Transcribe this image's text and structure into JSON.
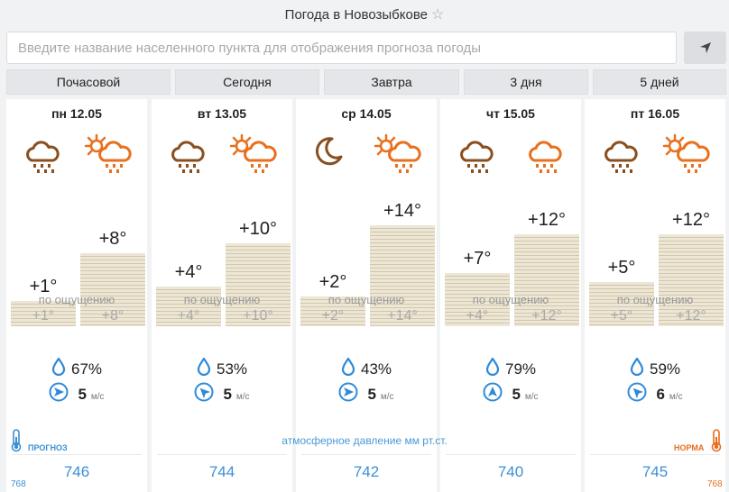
{
  "header": {
    "title": "Погода в Новозыбкове",
    "star_icon": "star-outline-icon"
  },
  "search": {
    "placeholder": "Введите название населенного пункта для отображения прогноза погоды",
    "value": "",
    "locate_icon": "location-arrow-icon"
  },
  "tabs": [
    {
      "label": "Почасовой"
    },
    {
      "label": "Сегодня"
    },
    {
      "label": "Завтра"
    },
    {
      "label": "3 дня"
    },
    {
      "label": "5 дней"
    }
  ],
  "feels_label": "по ощущению",
  "wind_unit": "м/с",
  "pressure_caption": "атмосферное давление  мм рт.ст.",
  "forecast_label": "ПРОГНОЗ",
  "norm_label": "НОРМА",
  "pressure_scale_left": "768",
  "pressure_scale_right": "768",
  "colors": {
    "accent_blue": "#3d8fd6",
    "norm_orange": "#e86c1c",
    "bar_fill": "#ece6d6",
    "bar_line": "#d4c7a8"
  },
  "days": [
    {
      "date": "пн 12.05",
      "night_icon": "cloud-rain-icon",
      "day_icon": "sun-cloud-rain-icon",
      "night_temp": "+1°",
      "day_temp": "+8°",
      "night_feel": "+1°",
      "day_feel": "+8°",
      "humidity": "67%",
      "wind_speed": "5",
      "wind_dir": "east",
      "pressure": "746"
    },
    {
      "date": "вт 13.05",
      "night_icon": "cloud-rain-icon",
      "day_icon": "sun-cloud-rain-icon",
      "night_temp": "+4°",
      "day_temp": "+10°",
      "night_feel": "+4°",
      "day_feel": "+10°",
      "humidity": "53%",
      "wind_speed": "5",
      "wind_dir": "northwest",
      "pressure": "744"
    },
    {
      "date": "ср 14.05",
      "night_icon": "moon-icon",
      "day_icon": "sun-cloud-rain-icon",
      "night_temp": "+2°",
      "day_temp": "+14°",
      "night_feel": "+2°",
      "day_feel": "+14°",
      "humidity": "43%",
      "wind_speed": "5",
      "wind_dir": "east",
      "pressure": "742"
    },
    {
      "date": "чт 15.05",
      "night_icon": "cloud-rain-icon",
      "day_icon": "cloud-rain-icon",
      "night_temp": "+7°",
      "day_temp": "+12°",
      "night_feel": "+4°",
      "day_feel": "+12°",
      "humidity": "79%",
      "wind_speed": "5",
      "wind_dir": "north",
      "pressure": "740"
    },
    {
      "date": "пт 16.05",
      "night_icon": "cloud-rain-icon",
      "day_icon": "sun-cloud-rain-icon",
      "night_temp": "+5°",
      "day_temp": "+12°",
      "night_feel": "+5°",
      "day_feel": "+12°",
      "humidity": "59%",
      "wind_speed": "6",
      "wind_dir": "northwest",
      "pressure": "745"
    }
  ]
}
